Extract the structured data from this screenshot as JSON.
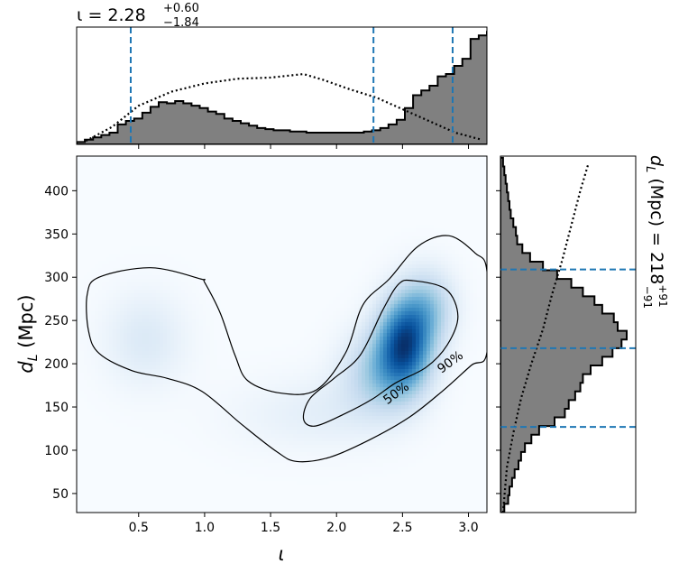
{
  "chart_data": [
    {
      "panel": "top-marginal",
      "type": "histogram",
      "title_main": "ι = 2.28",
      "title_sup": "+0.60",
      "title_sub": "−1.84",
      "xlim": [
        0.03,
        3.14
      ],
      "posterior_bins": {
        "edges_start": 0.03,
        "bin_width": 0.0622,
        "heights": [
          0.02,
          0.04,
          0.06,
          0.08,
          0.1,
          0.17,
          0.2,
          0.22,
          0.27,
          0.32,
          0.36,
          0.35,
          0.37,
          0.35,
          0.33,
          0.31,
          0.28,
          0.26,
          0.22,
          0.2,
          0.18,
          0.16,
          0.14,
          0.13,
          0.12,
          0.12,
          0.11,
          0.11,
          0.1,
          0.1,
          0.1,
          0.1,
          0.1,
          0.1,
          0.1,
          0.11,
          0.12,
          0.14,
          0.17,
          0.21,
          0.31,
          0.42,
          0.46,
          0.5,
          0.58,
          0.6,
          0.67,
          0.73,
          0.9,
          0.93,
          0.96,
          0.97,
          0.94,
          0.85,
          0.72,
          0.62,
          0.48,
          0.3,
          0.09,
          0.04,
          0.01
        ]
      },
      "prior_line": [
        [
          0.1,
          0.03
        ],
        [
          0.3,
          0.15
        ],
        [
          0.5,
          0.33
        ],
        [
          0.75,
          0.45
        ],
        [
          1.0,
          0.52
        ],
        [
          1.25,
          0.56
        ],
        [
          1.5,
          0.57
        ],
        [
          1.75,
          0.6
        ],
        [
          1.9,
          0.55
        ],
        [
          2.1,
          0.47
        ],
        [
          2.3,
          0.4
        ],
        [
          2.5,
          0.3
        ],
        [
          2.7,
          0.2
        ],
        [
          2.9,
          0.1
        ],
        [
          3.1,
          0.04
        ]
      ],
      "quantile_lines": [
        0.44,
        2.28,
        2.88
      ],
      "colors": {
        "fill": "#808080",
        "edge": "#000000",
        "quantile": "#1f77b4"
      }
    },
    {
      "panel": "main-density",
      "type": "heatmap",
      "xlabel": "ι",
      "ylabel": "d_L (Mpc)",
      "ylabel_main": "d",
      "ylabel_sub": "L",
      "ylabel_rest": " (Mpc)",
      "xlim": [
        0.03,
        3.14
      ],
      "ylim": [
        28,
        440
      ],
      "xticks": [
        0.5,
        1.0,
        1.5,
        2.0,
        2.5,
        3.0
      ],
      "xtick_labels": [
        "0.5",
        "1.0",
        "1.5",
        "2.0",
        "2.5",
        "3.0"
      ],
      "yticks": [
        50,
        100,
        150,
        200,
        250,
        300,
        350,
        400
      ],
      "ytick_labels": [
        "50",
        "100",
        "150",
        "200",
        "250",
        "300",
        "350",
        "400"
      ],
      "blobs": [
        {
          "x": 2.52,
          "y": 225,
          "sx": 0.14,
          "sy": 36,
          "weight": 1.0
        },
        {
          "x": 2.35,
          "y": 190,
          "sx": 0.2,
          "sy": 34,
          "weight": 0.45
        },
        {
          "x": 2.7,
          "y": 265,
          "sx": 0.14,
          "sy": 30,
          "weight": 0.4
        },
        {
          "x": 0.55,
          "y": 228,
          "sx": 0.22,
          "sy": 38,
          "weight": 0.17
        },
        {
          "x": 1.55,
          "y": 140,
          "sx": 0.35,
          "sy": 30,
          "weight": 0.06
        },
        {
          "x": 2.0,
          "y": 145,
          "sx": 0.3,
          "sy": 30,
          "weight": 0.09
        }
      ],
      "contour_90": [
        [
          0.97,
          298
        ],
        [
          0.59,
          311
        ],
        [
          0.2,
          300
        ],
        [
          0.11,
          280
        ],
        [
          0.12,
          238
        ],
        [
          0.2,
          212
        ],
        [
          0.45,
          192
        ],
        [
          0.72,
          183
        ],
        [
          0.98,
          168
        ],
        [
          1.28,
          130
        ],
        [
          1.55,
          98
        ],
        [
          1.7,
          87
        ],
        [
          1.95,
          92
        ],
        [
          2.25,
          112
        ],
        [
          2.55,
          138
        ],
        [
          2.8,
          168
        ],
        [
          3.02,
          198
        ],
        [
          3.14,
          213
        ],
        [
          3.14,
          307
        ],
        [
          3.05,
          328
        ],
        [
          2.85,
          348
        ],
        [
          2.62,
          336
        ],
        [
          2.4,
          298
        ],
        [
          2.2,
          268
        ],
        [
          2.07,
          213
        ],
        [
          1.85,
          170
        ],
        [
          1.58,
          166
        ],
        [
          1.33,
          180
        ],
        [
          1.23,
          210
        ],
        [
          1.12,
          258
        ],
        [
          1.0,
          294
        ]
      ],
      "contour_50": [
        [
          2.58,
          296
        ],
        [
          2.83,
          286
        ],
        [
          2.92,
          255
        ],
        [
          2.84,
          222
        ],
        [
          2.68,
          196
        ],
        [
          2.45,
          178
        ],
        [
          2.27,
          159
        ],
        [
          2.06,
          142
        ],
        [
          1.84,
          128
        ],
        [
          1.75,
          136
        ],
        [
          1.8,
          160
        ],
        [
          1.98,
          183
        ],
        [
          2.18,
          210
        ],
        [
          2.35,
          262
        ],
        [
          2.47,
          292
        ]
      ],
      "contour_labels": [
        {
          "text": "50%",
          "x": 2.47,
          "y": 162,
          "angle": -36
        },
        {
          "text": "90%",
          "x": 2.88,
          "y": 198,
          "angle": -36
        }
      ],
      "colors": {
        "contour": "#000000",
        "cmap": "Blues"
      }
    },
    {
      "panel": "right-marginal",
      "type": "histogram",
      "title_main": "d",
      "title_sub_L": "L",
      "title_rest": " (Mpc) = 218",
      "title_sup": "+91",
      "title_sub": "−91",
      "ylim": [
        28,
        440
      ],
      "posterior_bins": {
        "edges_start": 28,
        "bin_width": 10,
        "counts": [
          0.03,
          0.06,
          0.07,
          0.09,
          0.11,
          0.14,
          0.16,
          0.19,
          0.24,
          0.3,
          0.42,
          0.5,
          0.53,
          0.58,
          0.62,
          0.64,
          0.7,
          0.79,
          0.87,
          0.94,
          0.98,
          0.91,
          0.88,
          0.79,
          0.73,
          0.64,
          0.55,
          0.44,
          0.33,
          0.23,
          0.17,
          0.13,
          0.12,
          0.1,
          0.08,
          0.07,
          0.06,
          0.05,
          0.04,
          0.03,
          0.02
        ]
      },
      "prior_line": [
        [
          28,
          0.02
        ],
        [
          80,
          0.05
        ],
        [
          120,
          0.1
        ],
        [
          160,
          0.16
        ],
        [
          200,
          0.24
        ],
        [
          240,
          0.33
        ],
        [
          280,
          0.4
        ],
        [
          320,
          0.48
        ],
        [
          360,
          0.55
        ],
        [
          400,
          0.62
        ],
        [
          430,
          0.68
        ]
      ],
      "quantile_lines": [
        127,
        218,
        309
      ],
      "colors": {
        "fill": "#808080",
        "edge": "#000000",
        "quantile": "#1f77b4"
      }
    }
  ]
}
